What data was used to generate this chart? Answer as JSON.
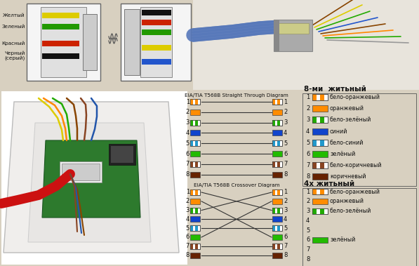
{
  "bg_color": "#d8d0c0",
  "straight_title": "EIA/TIA T568B Straight Through Diagram",
  "crossover_title": "EIA/TIA T568B Crossover Diagram",
  "legend8_title": "8-ми  житьный",
  "legend4_title": "4х житьный",
  "wire_colors": [
    {
      "main": "#FF8C00",
      "stripe": true,
      "label": "бело-оранжевый"
    },
    {
      "main": "#FF8C00",
      "stripe": false,
      "label": "оранжевый"
    },
    {
      "main": "#22AA00",
      "stripe": true,
      "label": "бело-зелёный"
    },
    {
      "main": "#1144CC",
      "stripe": false,
      "label": "синий"
    },
    {
      "main": "#2299CC",
      "stripe": true,
      "label": "бело-синий"
    },
    {
      "main": "#22BB00",
      "stripe": false,
      "label": "зелёный"
    },
    {
      "main": "#884422",
      "stripe": true,
      "label": "бело-коричневый"
    },
    {
      "main": "#662200",
      "stripe": false,
      "label": "коричневый"
    }
  ],
  "wire4_active": [
    0,
    1,
    2,
    5
  ],
  "crossover_right": [
    3,
    6,
    1,
    4,
    5,
    2,
    7,
    8
  ],
  "top_labels": [
    "Желтый",
    "Зеленый",
    "Красный",
    "Черный\n(серый)"
  ],
  "top_left_colors": [
    "#DDCC00",
    "#229900",
    "#CC2200",
    "#111111"
  ],
  "top_right_colors": [
    "#111111",
    "#CC2200",
    "#229900",
    "#DDCC00",
    "#2255CC"
  ],
  "photo_bg": "#f0ede8"
}
